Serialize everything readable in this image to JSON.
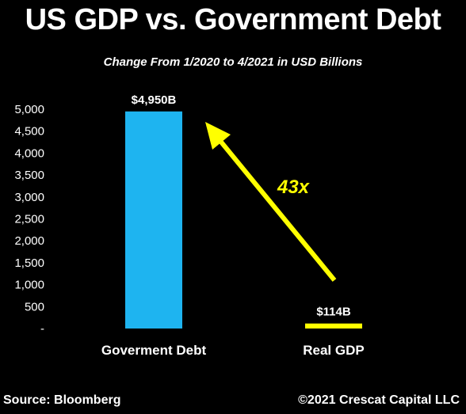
{
  "header": {
    "title": "US GDP vs. Government Debt",
    "subtitle": "Change From 1/2020 to 4/2021 in USD Billions"
  },
  "footer": {
    "source": "Source: Bloomberg",
    "copyright": "©2021 Crescat Capital LLC"
  },
  "annotation": {
    "label": "43x",
    "color": "#ffff00"
  },
  "colors": {
    "background": "#000000",
    "text": "#ffffff",
    "bar_debt": "#1eb4f0",
    "bar_gdp": "#ffff00"
  },
  "chart_data": {
    "type": "bar",
    "title": "US GDP vs. Government Debt",
    "subtitle": "Change From 1/2020 to 4/2021 in USD Billions",
    "categories": [
      "Goverment Debt",
      "Real GDP"
    ],
    "values": [
      4950,
      114
    ],
    "data_labels": [
      "$4,950B",
      "$114B"
    ],
    "yticks": [
      "-",
      "500",
      "1,000",
      "1,500",
      "2,000",
      "2,500",
      "3,000",
      "3,500",
      "4,000",
      "4,500",
      "5,000"
    ],
    "ylim": [
      0,
      5000
    ],
    "grid": false,
    "legend": "none"
  }
}
